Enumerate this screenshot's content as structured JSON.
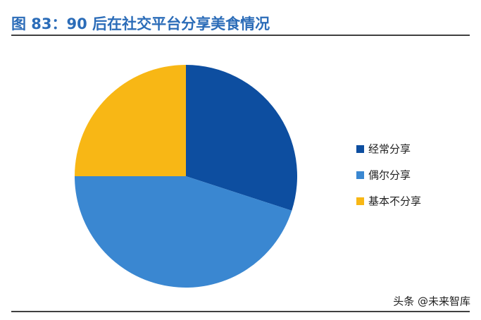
{
  "chart_data": {
    "type": "pie",
    "title": "图 83：90 后在社交平台分享美食情况",
    "categories": [
      "经常分享",
      "偶尔分享",
      "基本不分享"
    ],
    "values": [
      30,
      45,
      25
    ],
    "colors": [
      "#0d4ea0",
      "#3a87d1",
      "#f8b715"
    ],
    "legend": "right"
  },
  "watermark": "头条 @未来智库"
}
